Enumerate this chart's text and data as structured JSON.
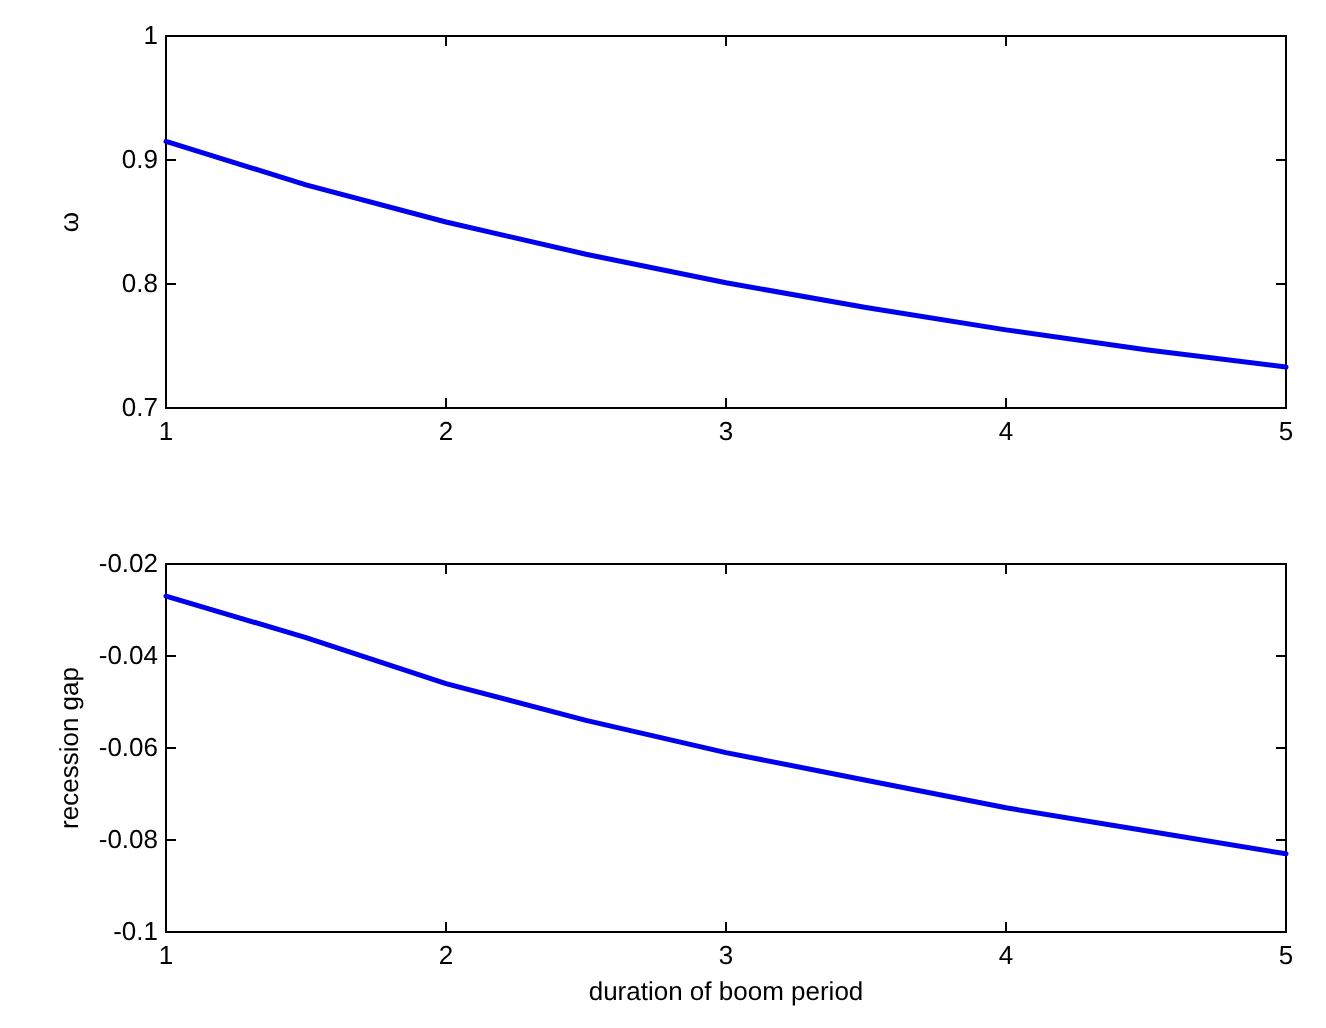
{
  "chart_data": [
    {
      "type": "line",
      "ylabel": "ω",
      "x": [
        1,
        1.5,
        2,
        2.5,
        3,
        3.5,
        4,
        4.5,
        5
      ],
      "series": [
        {
          "color": "#0000ee",
          "values": [
            0.915,
            0.88,
            0.85,
            0.824,
            0.801,
            0.781,
            0.763,
            0.747,
            0.733
          ]
        }
      ],
      "xlim": [
        1,
        5
      ],
      "xticks": [
        1,
        2,
        3,
        4,
        5
      ],
      "ylim": [
        0.7,
        1
      ],
      "yticks": [
        0.7,
        0.8,
        0.9,
        1
      ]
    },
    {
      "type": "line",
      "xlabel": "duration of boom period",
      "ylabel": "recession gap",
      "x": [
        1,
        1.5,
        2,
        2.5,
        3,
        3.5,
        4,
        4.5,
        5
      ],
      "series": [
        {
          "color": "#0000ee",
          "values": [
            -0.027,
            -0.036,
            -0.046,
            -0.054,
            -0.061,
            -0.067,
            -0.073,
            -0.078,
            -0.083
          ]
        }
      ],
      "xlim": [
        1,
        5
      ],
      "xticks": [
        1,
        2,
        3,
        4,
        5
      ],
      "ylim": [
        -0.1,
        -0.02
      ],
      "yticks": [
        -0.1,
        -0.08,
        -0.06,
        -0.04,
        -0.02
      ]
    }
  ]
}
